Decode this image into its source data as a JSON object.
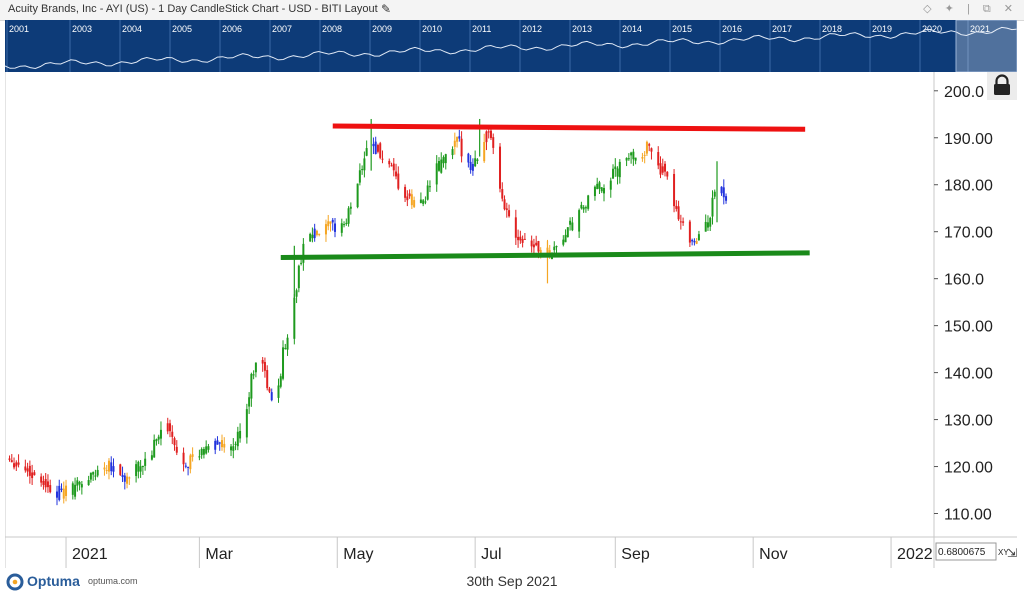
{
  "window": {
    "title": "Acuity Brands, Inc - AYI (US) - 1 Day CandleStick Chart - USD - BITI Layout",
    "controls": "◇ ✦ | ⧉ ✕"
  },
  "footer": {
    "brand": "Optuma",
    "brand_url": "optuma.com",
    "date": "30th Sep 2021",
    "readout": "0.6800675",
    "readout_mode": "XY"
  },
  "colors": {
    "bull_green": "#1e9a1e",
    "bear_red": "#e02020",
    "orange": "#f5a623",
    "blue": "#2233dd",
    "resistance_line": "#ee1111",
    "support_line": "#1a8a1a",
    "overview_bg": "#0d3b78"
  },
  "overview": {
    "years": [
      "2001",
      "2003",
      "2004",
      "2005",
      "2006",
      "2007",
      "2008",
      "2009",
      "2010",
      "2011",
      "2012",
      "2013",
      "2014",
      "2015",
      "2016",
      "2017",
      "2018",
      "2019",
      "2020",
      "2021"
    ]
  },
  "chart_data": {
    "type": "candlestick",
    "title": "Acuity Brands, Inc - AYI (US) - 1 Day CandleStick Chart - USD - BITI Layout",
    "x_tick_labels": [
      "2021",
      "Mar",
      "May",
      "Jul",
      "Sep",
      "Nov",
      "2022"
    ],
    "y_tick_labels": [
      "110.00",
      "120.00",
      "130.00",
      "140.00",
      "150.00",
      "160.0",
      "170.00",
      "180.00",
      "190.00",
      "200.0"
    ],
    "ylim": [
      105,
      204
    ],
    "x_range": [
      "2020-12-05",
      "2022-01-20"
    ],
    "key_points": [
      {
        "date": "2020-12-07",
        "close": 122
      },
      {
        "date": "2020-12-22",
        "close": 117
      },
      {
        "date": "2020-12-30",
        "close": 114
      },
      {
        "date": "2021-01-10",
        "close": 117
      },
      {
        "date": "2021-01-20",
        "close": 121
      },
      {
        "date": "2021-01-28",
        "close": 117
      },
      {
        "date": "2021-02-07",
        "close": 122
      },
      {
        "date": "2021-02-14",
        "close": 130
      },
      {
        "date": "2021-02-20",
        "close": 121
      },
      {
        "date": "2021-03-01",
        "close": 122
      },
      {
        "date": "2021-03-08",
        "close": 126
      },
      {
        "date": "2021-03-14",
        "close": 122
      },
      {
        "date": "2021-03-20",
        "close": 128
      },
      {
        "date": "2021-03-27",
        "close": 146
      },
      {
        "date": "2021-04-03",
        "close": 131
      },
      {
        "date": "2021-04-07",
        "close": 144
      },
      {
        "date": "2021-04-12",
        "close": 155
      },
      {
        "date": "2021-04-16",
        "close": 168
      },
      {
        "date": "2021-04-25",
        "close": 170
      },
      {
        "date": "2021-05-05",
        "close": 172
      },
      {
        "date": "2021-05-15",
        "close": 190
      },
      {
        "date": "2021-05-22",
        "close": 185
      },
      {
        "date": "2021-05-30",
        "close": 178
      },
      {
        "date": "2021-06-06",
        "close": 175
      },
      {
        "date": "2021-06-14",
        "close": 183
      },
      {
        "date": "2021-06-23",
        "close": 189
      },
      {
        "date": "2021-06-30",
        "close": 184
      },
      {
        "date": "2021-07-07",
        "close": 192
      },
      {
        "date": "2021-07-12",
        "close": 178
      },
      {
        "date": "2021-07-19",
        "close": 170
      },
      {
        "date": "2021-07-26",
        "close": 168
      },
      {
        "date": "2021-08-01",
        "close": 165
      },
      {
        "date": "2021-08-06",
        "close": 167
      },
      {
        "date": "2021-08-14",
        "close": 172
      },
      {
        "date": "2021-08-22",
        "close": 178
      },
      {
        "date": "2021-08-31",
        "close": 182
      },
      {
        "date": "2021-09-08",
        "close": 186
      },
      {
        "date": "2021-09-17",
        "close": 188
      },
      {
        "date": "2021-09-26",
        "close": 178
      },
      {
        "date": "2021-10-02",
        "close": 170
      },
      {
        "date": "2021-10-07",
        "close": 168
      },
      {
        "date": "2021-10-12",
        "close": 172
      },
      {
        "date": "2021-10-17",
        "close": 182
      },
      {
        "date": "2021-10-20",
        "close": 176
      }
    ],
    "trendlines": [
      {
        "name": "resistance",
        "color": "#ee1111",
        "start": {
          "date": "2021-04-29",
          "value": 192.5
        },
        "end": {
          "date": "2021-11-24",
          "value": 191.8
        }
      },
      {
        "name": "support",
        "color": "#1a8a1a",
        "start": {
          "date": "2021-04-06",
          "value": 164.5
        },
        "end": {
          "date": "2021-11-26",
          "value": 165.5
        }
      }
    ],
    "grid": true
  }
}
